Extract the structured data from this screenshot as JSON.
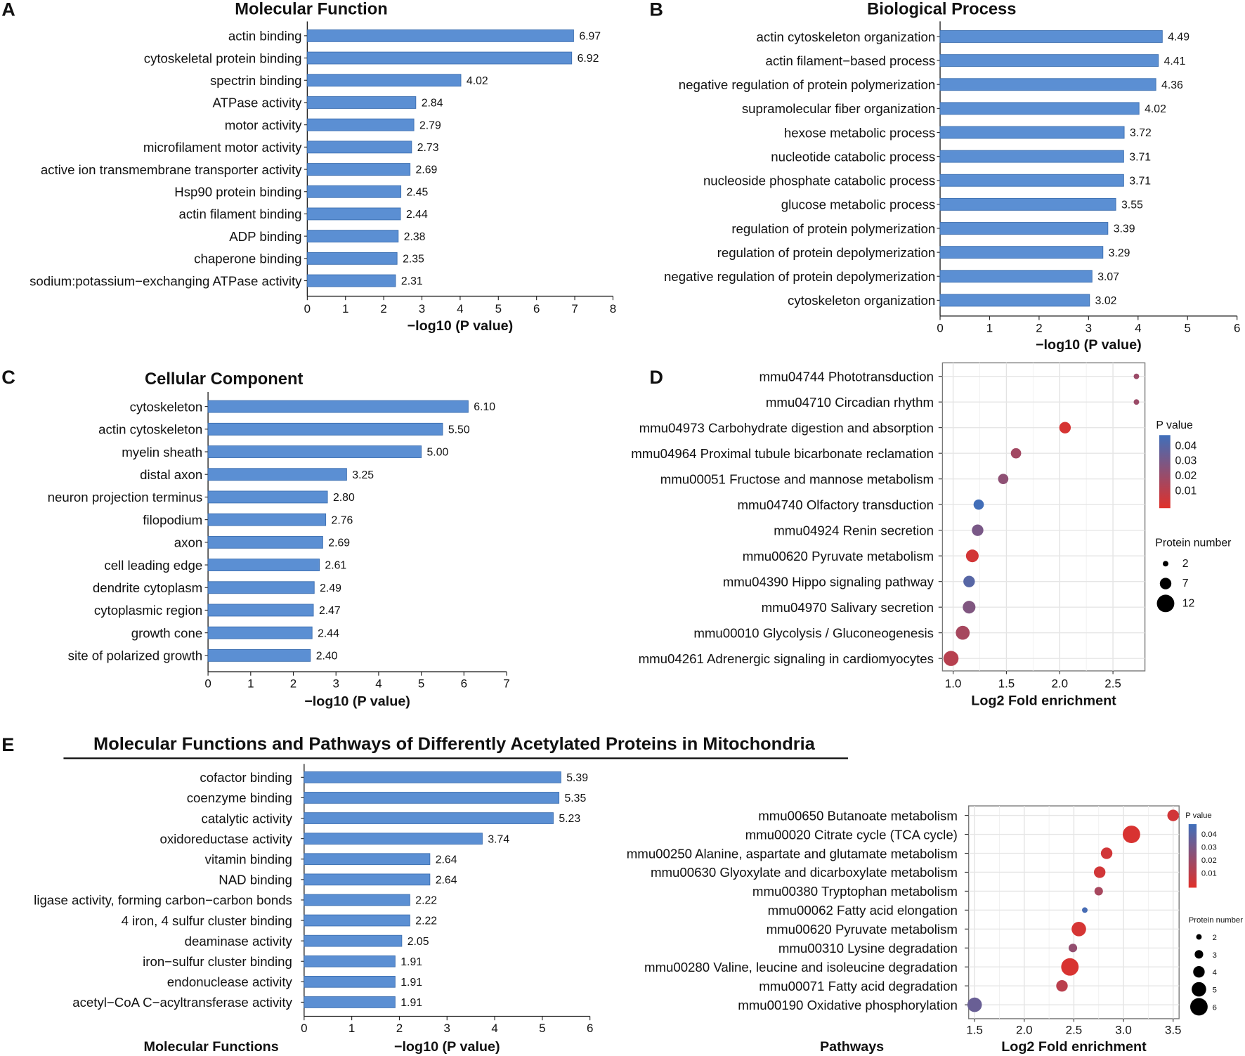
{
  "panel_labels": [
    "A",
    "B",
    "C",
    "D",
    "E"
  ],
  "colors": {
    "bar": "#5b8fd3",
    "bar_edge": "#3d6fb0",
    "p_low": "#e0302a",
    "p_high": "#3f6fbb"
  },
  "section_e_title": "Molecular Functions and Pathways of Differently Acetylated Proteins in Mitochondria",
  "chart_data": [
    {
      "id": "A",
      "type": "bar",
      "orientation": "horizontal",
      "title": "Molecular Function",
      "xlabel": "−log10 (P value)",
      "xlim": [
        0,
        8
      ],
      "xticks": [
        0,
        1,
        2,
        3,
        4,
        5,
        6,
        7,
        8
      ],
      "categories": [
        "actin binding",
        "cytoskeletal protein binding",
        "spectrin binding",
        "ATPase activity",
        "motor activity",
        "microfilament motor activity",
        "active ion transmembrane transporter activity",
        "Hsp90 protein binding",
        "actin filament binding",
        "ADP binding",
        "chaperone binding",
        "sodium:potassium−exchanging ATPase activity"
      ],
      "values": [
        6.97,
        6.92,
        4.02,
        2.84,
        2.79,
        2.73,
        2.69,
        2.45,
        2.44,
        2.38,
        2.35,
        2.31
      ]
    },
    {
      "id": "B",
      "type": "bar",
      "orientation": "horizontal",
      "title": "Biological Process",
      "xlabel": "−log10 (P value)",
      "xlim": [
        0,
        6
      ],
      "xticks": [
        0,
        1,
        2,
        3,
        4,
        5,
        6
      ],
      "categories": [
        "actin cytoskeleton organization",
        "actin filament−based process",
        "negative regulation of protein polymerization",
        "supramolecular fiber organization",
        "hexose metabolic process",
        "nucleotide catabolic process",
        "nucleoside phosphate catabolic process",
        "glucose metabolic process",
        "regulation of protein polymerization",
        "regulation of protein depolymerization",
        "negative regulation of protein depolymerization",
        "cytoskeleton organization"
      ],
      "values": [
        4.49,
        4.41,
        4.36,
        4.02,
        3.72,
        3.71,
        3.71,
        3.55,
        3.39,
        3.29,
        3.07,
        3.02
      ]
    },
    {
      "id": "C",
      "type": "bar",
      "orientation": "horizontal",
      "title": "Cellular Component",
      "xlabel": "−log10 (P value)",
      "xlim": [
        0,
        7
      ],
      "xticks": [
        0,
        1,
        2,
        3,
        4,
        5,
        6,
        7
      ],
      "categories": [
        "cytoskeleton",
        "actin cytoskeleton",
        "myelin sheath",
        "distal axon",
        "neuron projection terminus",
        "filopodium",
        "axon",
        "cell leading edge",
        "dendrite cytoplasm",
        "cytoplasmic region",
        "growth cone",
        "site of polarized growth"
      ],
      "values": [
        6.1,
        5.5,
        5.0,
        3.25,
        2.8,
        2.76,
        2.69,
        2.61,
        2.49,
        2.47,
        2.44,
        2.4
      ]
    },
    {
      "id": "D",
      "type": "scatter",
      "title": "",
      "xlabel": "Log2 Fold enrichment",
      "xlim": [
        0.9,
        2.8
      ],
      "xticks": [
        1.0,
        1.5,
        2.0,
        2.5
      ],
      "xtick_labels": [
        "1.0",
        "1.5",
        "2.0",
        "2.5"
      ],
      "categories": [
        "mmu04744 Phototransduction",
        "mmu04710 Circadian rhythm",
        "mmu04973 Carbohydrate digestion and absorption",
        "mmu04964 Proximal tubule bicarbonate reclamation",
        "mmu00051 Fructose and mannose metabolism",
        "mmu04740 Olfactory transduction",
        "mmu04924 Renin secretion",
        "mmu00620 Pyruvate metabolism",
        "mmu04390 Hippo signaling pathway",
        "mmu04970 Salivary secretion",
        "mmu00010 Glycolysis / Gluconeogenesis",
        "mmu04261 Adrenergic signaling in cardiomyocytes"
      ],
      "x": [
        2.72,
        2.72,
        2.05,
        1.59,
        1.47,
        1.24,
        1.23,
        1.18,
        1.15,
        1.15,
        1.09,
        0.98
      ],
      "protein_number": [
        2,
        2,
        7,
        6,
        6,
        6,
        7,
        8,
        7,
        8,
        9,
        10
      ],
      "p_value": [
        0.02,
        0.02,
        0.003,
        0.018,
        0.024,
        0.046,
        0.03,
        0.004,
        0.04,
        0.028,
        0.017,
        0.012
      ],
      "color_legend": {
        "title": "P value",
        "ticks": [
          "0.04",
          "0.03",
          "0.02",
          "0.01"
        ],
        "range": [
          0,
          0.047
        ]
      },
      "size_legend": {
        "title": "Protein number",
        "values": [
          2,
          7,
          12
        ]
      }
    },
    {
      "id": "E",
      "type": "bar",
      "orientation": "horizontal",
      "title": "",
      "ylabel": "Molecular Functions",
      "xlabel": "−log10 (P value)",
      "xlim": [
        0,
        6
      ],
      "xticks": [
        0,
        1,
        2,
        3,
        4,
        5,
        6
      ],
      "categories": [
        "cofactor binding",
        "coenzyme binding",
        "catalytic activity",
        "oxidoreductase activity",
        "vitamin binding",
        "NAD binding",
        "ligase activity, forming carbon−carbon bonds",
        "4 iron, 4 sulfur cluster binding",
        "deaminase activity",
        "iron−sulfur cluster binding",
        "endonuclease activity",
        "acetyl−CoA C−acyltransferase activity"
      ],
      "values": [
        5.39,
        5.35,
        5.23,
        3.74,
        2.64,
        2.64,
        2.22,
        2.22,
        2.05,
        1.91,
        1.91,
        1.91
      ]
    },
    {
      "id": "F",
      "type": "scatter",
      "title": "",
      "ylabel": "Pathways",
      "xlabel": "Log2 Fold enrichment",
      "xlim": [
        1.44,
        3.56
      ],
      "xticks": [
        1.5,
        2.0,
        2.5,
        3.0,
        3.5
      ],
      "xtick_labels": [
        "1.5",
        "2.0",
        "2.5",
        "3.0",
        "3.5"
      ],
      "categories": [
        "mmu00650 Butanoate metabolism",
        "mmu00020 Citrate cycle (TCA cycle)",
        "mmu00250 Alanine, aspartate and glutamate metabolism",
        "mmu00630 Glyoxylate and dicarboxylate metabolism",
        "mmu00380 Tryptophan metabolism",
        "mmu00062 Fatty acid elongation",
        "mmu00620 Pyruvate metabolism",
        "mmu00310 Lysine degradation",
        "mmu00280 Valine, leucine and isoleucine degradation",
        "mmu00071 Fatty acid degradation",
        "mmu00190 Oxidative phosphorylation"
      ],
      "x": [
        3.5,
        3.08,
        2.83,
        2.76,
        2.75,
        2.61,
        2.55,
        2.49,
        2.46,
        2.38,
        1.5
      ],
      "protein_number": [
        4,
        6,
        4,
        4,
        3,
        2,
        5,
        3,
        6,
        4,
        5
      ],
      "p_value": [
        0.004,
        0.002,
        0.004,
        0.004,
        0.015,
        0.04,
        0.003,
        0.02,
        0.002,
        0.01,
        0.031
      ],
      "color_legend": {
        "title": "P value",
        "ticks": [
          "0.04",
          "0.03",
          "0.02",
          "0.01"
        ],
        "range": [
          0,
          0.042
        ]
      },
      "size_legend": {
        "title": "Protein number",
        "values": [
          2,
          3,
          4,
          5,
          6
        ]
      }
    }
  ]
}
